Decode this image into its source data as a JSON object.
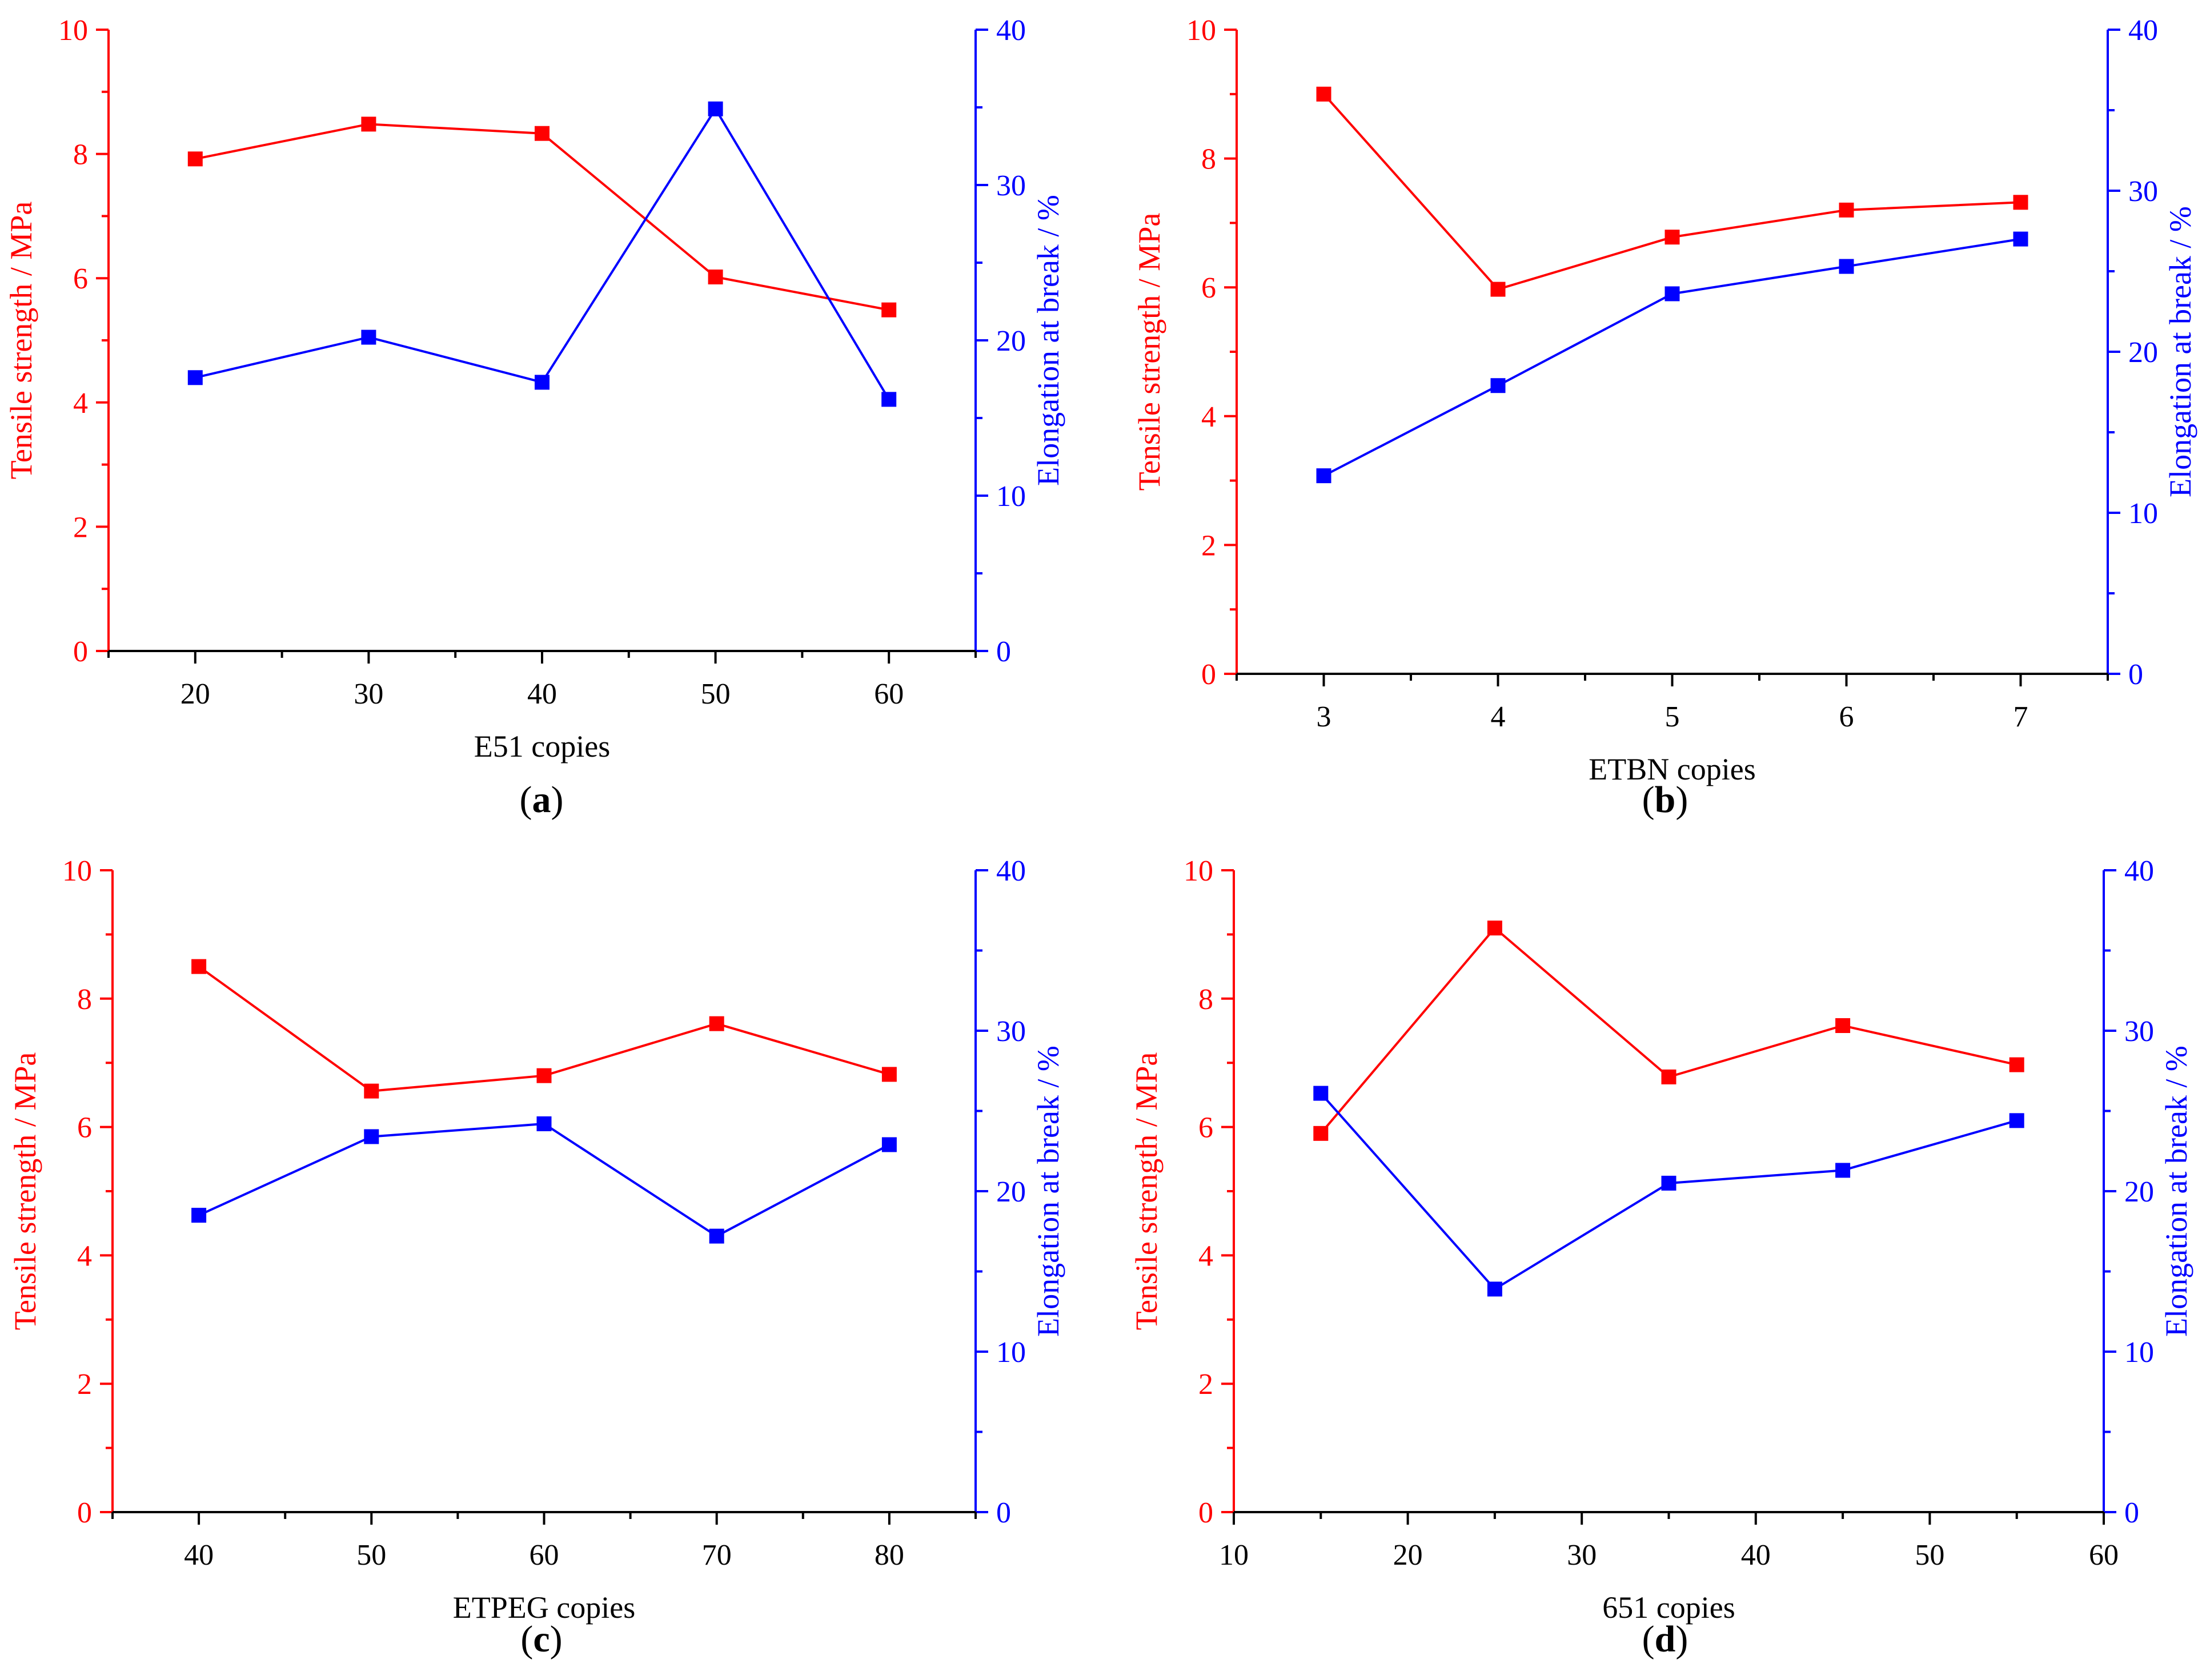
{
  "colors": {
    "tensile": "#ff0000",
    "elongation": "#0000ff",
    "axis": "#000000"
  },
  "chart_data": [
    {
      "type": "line",
      "panel_label": "(a)",
      "panel_letter": "a",
      "xlabel": "E51 copies",
      "ylabel_left": "Tensile strength / MPa",
      "ylabel_right": "Elongation at break / %",
      "x": [
        20,
        30,
        40,
        50,
        60
      ],
      "xlim": [
        15,
        65
      ],
      "xticks": [
        20,
        30,
        40,
        50,
        60
      ],
      "ylim_left": [
        0,
        10
      ],
      "yticks_left": [
        0,
        2,
        4,
        6,
        8,
        10
      ],
      "ylim_right": [
        0,
        40
      ],
      "yticks_right": [
        0,
        10,
        20,
        30,
        40
      ],
      "series": [
        {
          "name": "Tensile strength",
          "axis": "left",
          "values": [
            7.92,
            8.48,
            8.33,
            6.02,
            5.49
          ]
        },
        {
          "name": "Elongation at break",
          "axis": "right",
          "values": [
            17.6,
            20.2,
            17.3,
            34.9,
            16.2
          ]
        }
      ]
    },
    {
      "type": "line",
      "panel_label": "(b)",
      "panel_letter": "b",
      "xlabel": "ETBN copies",
      "ylabel_left": "Tensile strength / MPa",
      "ylabel_right": "Elongation at break / %",
      "x": [
        3,
        4,
        5,
        6,
        7
      ],
      "xlim": [
        2.5,
        7.5
      ],
      "xticks": [
        3,
        4,
        5,
        6,
        7
      ],
      "ylim_left": [
        0,
        10
      ],
      "yticks_left": [
        0,
        2,
        4,
        6,
        8,
        10
      ],
      "ylim_right": [
        0,
        40
      ],
      "yticks_right": [
        0,
        10,
        20,
        30,
        40
      ],
      "series": [
        {
          "name": "Tensile strength",
          "axis": "left",
          "values": [
            9.0,
            5.97,
            6.78,
            7.2,
            7.32
          ]
        },
        {
          "name": "Elongation at break",
          "axis": "right",
          "values": [
            12.3,
            17.9,
            23.6,
            25.3,
            27.0
          ]
        }
      ]
    },
    {
      "type": "line",
      "panel_label": "(c)",
      "panel_letter": "c",
      "xlabel": "ETPEG copies",
      "ylabel_left": "Tensile strength / MPa",
      "ylabel_right": "Elongation at break / %",
      "x": [
        40,
        50,
        60,
        70,
        80
      ],
      "xlim": [
        35,
        85
      ],
      "xticks": [
        40,
        50,
        60,
        70,
        80
      ],
      "ylim_left": [
        0,
        10
      ],
      "yticks_left": [
        0,
        2,
        4,
        6,
        8,
        10
      ],
      "ylim_right": [
        0,
        40
      ],
      "yticks_right": [
        0,
        10,
        20,
        30,
        40
      ],
      "series": [
        {
          "name": "Tensile strength",
          "axis": "left",
          "values": [
            8.5,
            6.56,
            6.8,
            7.61,
            6.82
          ]
        },
        {
          "name": "Elongation at break",
          "axis": "right",
          "values": [
            18.5,
            23.4,
            24.2,
            17.2,
            22.9
          ]
        }
      ]
    },
    {
      "type": "line",
      "panel_label": "(d)",
      "panel_letter": "d",
      "xlabel": "651 copies",
      "ylabel_left": "Tensile strength / MPa",
      "ylabel_right": "Elongation at break / %",
      "x": [
        15,
        25,
        35,
        45,
        55
      ],
      "xlim": [
        10,
        60
      ],
      "xticks": [
        10,
        20,
        30,
        40,
        50,
        60
      ],
      "ylim_left": [
        0,
        10
      ],
      "yticks_left": [
        0,
        2,
        4,
        6,
        8,
        10
      ],
      "ylim_right": [
        0,
        40
      ],
      "yticks_right": [
        0,
        10,
        20,
        30,
        40
      ],
      "series": [
        {
          "name": "Tensile strength",
          "axis": "left",
          "values": [
            5.9,
            9.1,
            6.78,
            7.58,
            6.97
          ]
        },
        {
          "name": "Elongation at break",
          "axis": "right",
          "values": [
            26.1,
            13.9,
            20.5,
            21.3,
            24.4
          ]
        }
      ]
    }
  ]
}
